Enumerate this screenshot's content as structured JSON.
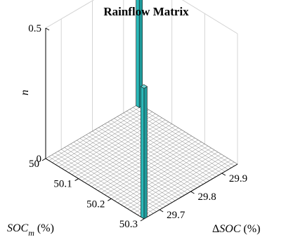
{
  "chart_data": {
    "type": "bar3d",
    "title": "Rainflow Matrix",
    "xlabel": {
      "prefix": "",
      "var": "SOC",
      "sub": "m",
      "suffix": " (%)"
    },
    "ylabel": {
      "prefix": "Δ",
      "var": "SOC",
      "sub": "",
      "suffix": " (%)"
    },
    "zlabel": "n",
    "x_range": [
      50,
      50.3
    ],
    "y_range": [
      29.65,
      29.95
    ],
    "z_range": [
      0,
      0.5
    ],
    "x_ticks": [
      "50",
      "50.1",
      "50.2",
      "50.3"
    ],
    "y_ticks": [
      "29.7",
      "29.8",
      "29.9"
    ],
    "z_ticks": [
      "0",
      "0.5"
    ],
    "grid_cells": 30,
    "bar_color": "#2ab8b8",
    "bars": [
      {
        "x": 50.3,
        "y": 29.65,
        "n": 0.5
      },
      {
        "x": 50.0,
        "y": 29.95,
        "n": 0.5
      }
    ]
  }
}
